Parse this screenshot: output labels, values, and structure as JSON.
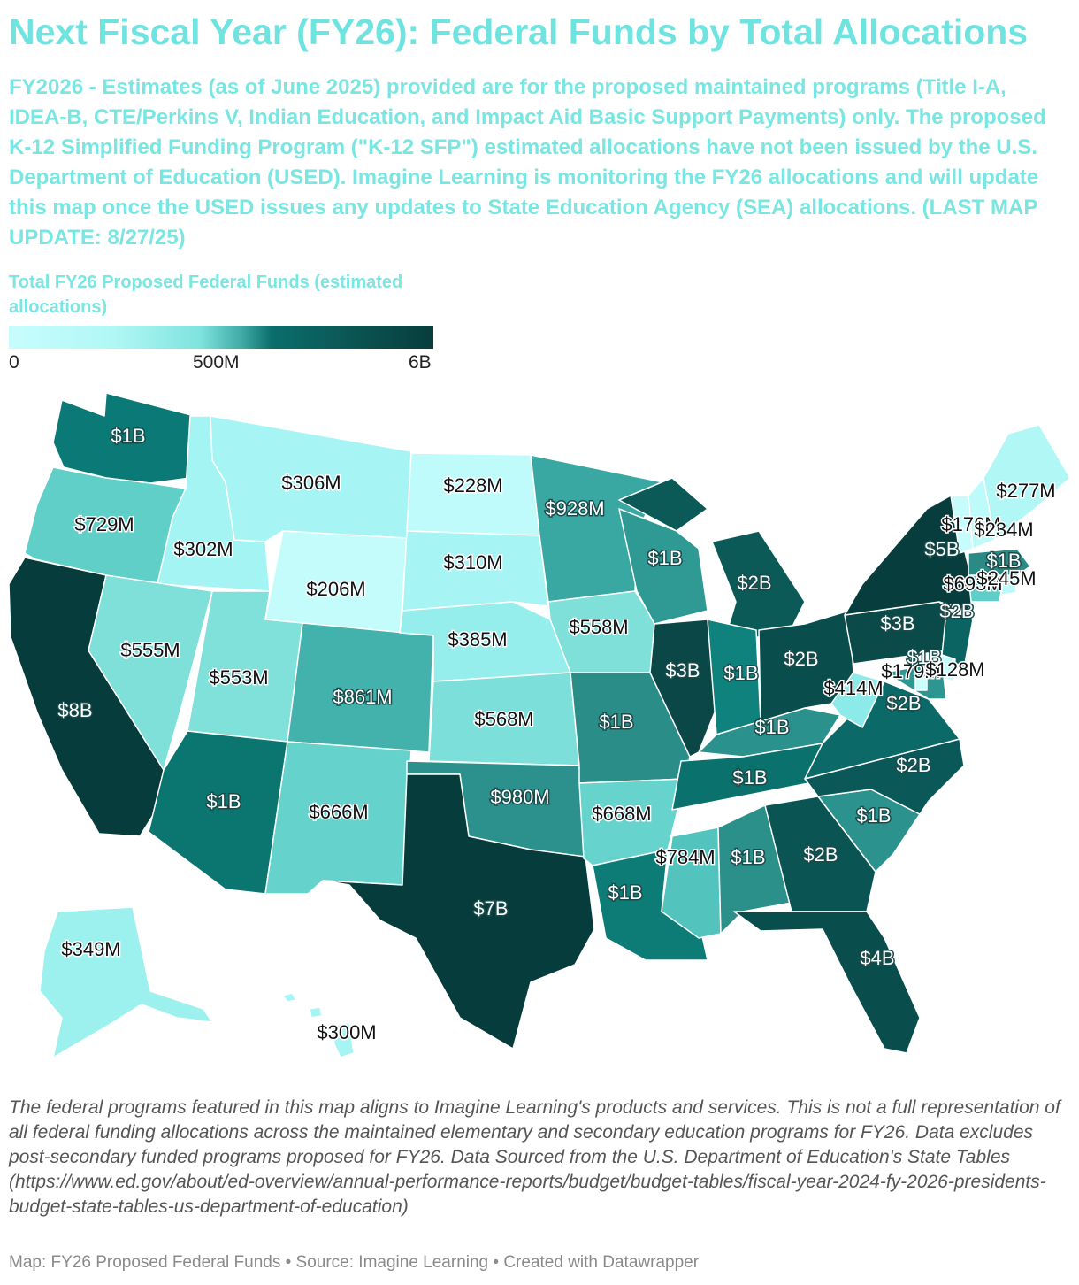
{
  "header": {
    "title": "Next Fiscal Year (FY26): Federal Funds by Total Allocations",
    "description": "FY2026 - Estimates (as of June 2025) provided are for the proposed maintained programs (Title I-A, IDEA-B, CTE/Perkins V, Indian Education, and Impact Aid Basic Support Payments) only. The proposed K-12 Simplified Funding Program (\"K-12 SFP\") estimated allocations have not been issued by the U.S. Department of Education (USED). Imagine Learning is monitoring the FY26 allocations and will update this map once the USED issues any updates to State Education Agency (SEA) allocations. (LAST MAP UPDATE: 8/27/25)"
  },
  "legend": {
    "title": "Total FY26 Proposed Federal Funds (estimated allocations)",
    "ticks": [
      "0",
      "500M",
      "6B"
    ],
    "colors": [
      "#c8fdfd",
      "#7fe3de",
      "#3fa9a5",
      "#0a6e6c",
      "#083d3c"
    ]
  },
  "map": {
    "states": [
      {
        "id": "WA",
        "label": "$1B",
        "color": "#0b7a76"
      },
      {
        "id": "OR",
        "label": "$729M",
        "color": "#5fcfc8"
      },
      {
        "id": "CA",
        "label": "$8B",
        "color": "#063c3b"
      },
      {
        "id": "ID",
        "label": "$302M",
        "color": "#a4f4f3"
      },
      {
        "id": "NV",
        "label": "$555M",
        "color": "#7fe0da"
      },
      {
        "id": "MT",
        "label": "$306M",
        "color": "#a6f5f4"
      },
      {
        "id": "WY",
        "label": "$206M",
        "color": "#c4fcfc"
      },
      {
        "id": "UT",
        "label": "$553M",
        "color": "#80e0da"
      },
      {
        "id": "AZ",
        "label": "$1B",
        "color": "#0b7570"
      },
      {
        "id": "CO",
        "label": "$861M",
        "color": "#44b2ac"
      },
      {
        "id": "NM",
        "label": "$666M",
        "color": "#66d2cc"
      },
      {
        "id": "ND",
        "label": "$228M",
        "color": "#c0fbfb"
      },
      {
        "id": "SD",
        "label": "$310M",
        "color": "#a6f5f4"
      },
      {
        "id": "NE",
        "label": "$385M",
        "color": "#95eeec"
      },
      {
        "id": "KS",
        "label": "$568M",
        "color": "#7ddfda"
      },
      {
        "id": "OK",
        "label": "$980M",
        "color": "#2c918c"
      },
      {
        "id": "TX",
        "label": "$7B",
        "color": "#063c3b"
      },
      {
        "id": "MN",
        "label": "$928M",
        "color": "#3aa8a2"
      },
      {
        "id": "IA",
        "label": "$558M",
        "color": "#7fe0da"
      },
      {
        "id": "MO",
        "label": "$1B",
        "color": "#2b8d88"
      },
      {
        "id": "AR",
        "label": "$668M",
        "color": "#67d3cd"
      },
      {
        "id": "LA",
        "label": "$1B",
        "color": "#0d7c77"
      },
      {
        "id": "WI",
        "label": "$1B",
        "color": "#2f9994"
      },
      {
        "id": "IL",
        "label": "$3B",
        "color": "#0a4746"
      },
      {
        "id": "MS",
        "label": "$784M",
        "color": "#52c4bd"
      },
      {
        "id": "MI",
        "label": "$2B",
        "color": "#0b5a58"
      },
      {
        "id": "IN",
        "label": "$1B",
        "color": "#0f827d"
      },
      {
        "id": "KY",
        "label": "$1B",
        "color": "#2b918c"
      },
      {
        "id": "TN",
        "label": "$1B",
        "color": "#0a716d"
      },
      {
        "id": "AL",
        "label": "$1B",
        "color": "#2b8f8a"
      },
      {
        "id": "OH",
        "label": "$2B",
        "color": "#094e4d"
      },
      {
        "id": "GA",
        "label": "$2B",
        "color": "#0a5553"
      },
      {
        "id": "FL",
        "label": "$4B",
        "color": "#094e4d"
      },
      {
        "id": "SC",
        "label": "$1B",
        "color": "#2c928d"
      },
      {
        "id": "NC",
        "label": "$2B",
        "color": "#0a5958"
      },
      {
        "id": "VA",
        "label": "$2B",
        "color": "#0b6a67"
      },
      {
        "id": "WV",
        "label": "$414M",
        "color": "#8cebe8"
      },
      {
        "id": "PA",
        "label": "$3B",
        "color": "#0a4b4a"
      },
      {
        "id": "NY",
        "label": "$5B",
        "color": "#073d3c"
      },
      {
        "id": "NJ",
        "label": "$2B",
        "color": "#0b6461"
      },
      {
        "id": "DE",
        "label": "$179M",
        "color": "#c6fcfc"
      },
      {
        "id": "MD",
        "label": "$1B",
        "color": "#2d9690"
      },
      {
        "id": "DC",
        "label": "$128M",
        "color": "#cafdfd"
      },
      {
        "id": "CT",
        "label": "$693M",
        "color": "#5fcec8"
      },
      {
        "id": "RI",
        "label": "$245M",
        "color": "#b9fafa"
      },
      {
        "id": "MA",
        "label": "$1B",
        "color": "#2a8a86"
      },
      {
        "id": "VT",
        "label": "$176M",
        "color": "#c6fcfc"
      },
      {
        "id": "NH",
        "label": "$234M",
        "color": "#bdfbfb"
      },
      {
        "id": "ME",
        "label": "$277M",
        "color": "#b0f7f6"
      },
      {
        "id": "AK",
        "label": "$349M",
        "color": "#9cf1ef"
      },
      {
        "id": "HI",
        "label": "$300M",
        "color": "#a6f5f4"
      }
    ]
  },
  "notes": "The federal programs featured in this map aligns to Imagine Learning's products and services. This is not a full representation of all federal funding allocations across the maintained elementary and secondary education programs for FY26. Data excludes post-secondary funded programs proposed for FY26. Data Sourced from the U.S. Department of Education's State Tables (https://www.ed.gov/about/ed-overview/annual-performance-reports/budget/budget-tables/fiscal-year-2024-fy-2026-presidents-budget-state-tables-us-department-of-education)",
  "footer": "Map: FY26 Proposed Federal Funds • Source: Imagine Learning • Created with Datawrapper"
}
